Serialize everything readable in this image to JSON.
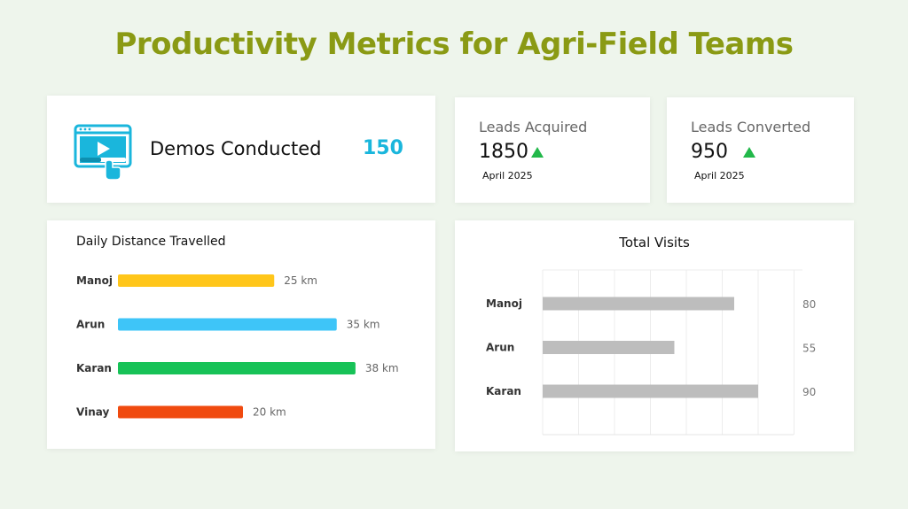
{
  "title": "Productivity Metrics for Agri-Field Teams",
  "demos": {
    "label": "Demos Conducted",
    "value": "150"
  },
  "leads_acquired": {
    "label": "Leads Acquired",
    "value": "1850",
    "period": "April 2025"
  },
  "leads_converted": {
    "label": "Leads Converted",
    "value": "950",
    "period": "April 2025"
  },
  "colors": {
    "title": "#8a9a14",
    "accent": "#1ab6dc",
    "up": "#22b84a",
    "visits_bar": "#bdbdbd"
  },
  "chart_data": [
    {
      "type": "bar",
      "orientation": "horizontal",
      "title": "Daily Distance Travelled",
      "categories": [
        "Manoj",
        "Arun",
        "Karan",
        "Vinay"
      ],
      "values": [
        25,
        35,
        38,
        20
      ],
      "unit": "km",
      "data_labels": [
        "25 km",
        "35 km",
        "38 km",
        "20 km"
      ],
      "colors": [
        "#ffc61a",
        "#3ec5f8",
        "#17c257",
        "#f04a0f"
      ],
      "grid": false
    },
    {
      "type": "bar",
      "orientation": "horizontal",
      "title": "Total Visits",
      "categories": [
        "Manoj",
        "Arun",
        "Karan"
      ],
      "values": [
        80,
        55,
        90
      ],
      "data_labels": [
        "80",
        "55",
        "90"
      ],
      "xlim": [
        0,
        105
      ],
      "grid": true
    }
  ]
}
